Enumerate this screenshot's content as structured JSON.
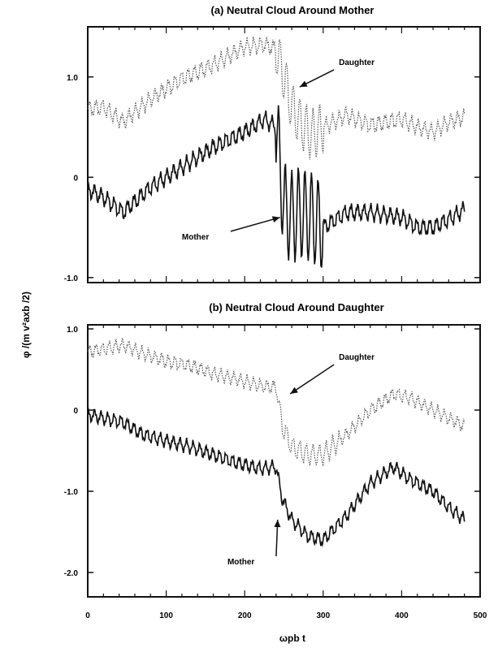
{
  "figure": {
    "ylabel": "φ /(m v²axb /2)",
    "xlabel": "ωpb t"
  },
  "chart_data": [
    {
      "type": "line",
      "title": "(a) Neutral Cloud Around Mother",
      "xlim": [
        0,
        500
      ],
      "ylim": [
        -1.05,
        1.5
      ],
      "yticks": [
        {
          "value": 1.0,
          "label": "1.0"
        },
        {
          "value": 0,
          "label": "0"
        },
        {
          "value": -1.0,
          "label": "-1.0"
        }
      ],
      "xticks": [
        0,
        100,
        200,
        300,
        400,
        500
      ],
      "grid": false,
      "series": [
        {
          "name": "Daughter",
          "style": "dotted",
          "color": "#555555",
          "x": [
            0,
            20,
            45,
            80,
            120,
            160,
            200,
            225,
            240,
            250,
            260,
            270,
            285,
            300,
            330,
            360,
            400,
            420,
            440,
            460,
            480
          ],
          "y": [
            0.68,
            0.7,
            0.55,
            0.78,
            0.98,
            1.12,
            1.3,
            1.32,
            1.28,
            1.0,
            0.7,
            0.55,
            0.42,
            0.5,
            0.62,
            0.52,
            0.58,
            0.5,
            0.45,
            0.55,
            0.6
          ]
        },
        {
          "name": "Mother",
          "style": "solid",
          "color": "#111111",
          "x": [
            0,
            20,
            45,
            80,
            120,
            160,
            200,
            225,
            240,
            250,
            260,
            270,
            285,
            300,
            330,
            360,
            400,
            420,
            440,
            460,
            480
          ],
          "y": [
            -0.12,
            -0.2,
            -0.35,
            -0.1,
            0.1,
            0.3,
            0.45,
            0.58,
            0.5,
            -0.3,
            -0.4,
            -0.35,
            -0.4,
            -0.5,
            -0.35,
            -0.35,
            -0.4,
            -0.5,
            -0.5,
            -0.42,
            -0.32
          ]
        }
      ],
      "annotations": [
        {
          "text": "Daughter",
          "x": 320,
          "y": 1.12,
          "arrow_to": [
            270,
            0.9
          ]
        },
        {
          "text": "Mother",
          "x": 120,
          "y": -0.62,
          "arrow_to": [
            245,
            -0.4
          ]
        }
      ]
    },
    {
      "type": "line",
      "title": "(b) Neutral Cloud Around Daughter",
      "xlim": [
        0,
        500
      ],
      "ylim": [
        -2.3,
        1.05
      ],
      "yticks": [
        {
          "value": 1.0,
          "label": "1.0"
        },
        {
          "value": 0,
          "label": "0"
        },
        {
          "value": -1.0,
          "label": "-1.0"
        },
        {
          "value": -2.0,
          "label": "-2.0"
        }
      ],
      "xticks": [
        0,
        100,
        200,
        300,
        400,
        500
      ],
      "grid": false,
      "series": [
        {
          "name": "Daughter",
          "style": "dotted",
          "color": "#555555",
          "x": [
            0,
            20,
            45,
            70,
            100,
            130,
            160,
            190,
            220,
            240,
            248,
            260,
            280,
            300,
            330,
            360,
            390,
            410,
            440,
            460,
            480
          ],
          "y": [
            0.72,
            0.75,
            0.8,
            0.7,
            0.6,
            0.55,
            0.45,
            0.38,
            0.3,
            0.28,
            -0.2,
            -0.45,
            -0.55,
            -0.55,
            -0.3,
            0.0,
            0.2,
            0.15,
            0.0,
            -0.1,
            -0.2
          ]
        },
        {
          "name": "Mother",
          "style": "solid",
          "color": "#111111",
          "x": [
            0,
            20,
            45,
            70,
            100,
            130,
            160,
            190,
            220,
            240,
            248,
            260,
            280,
            300,
            330,
            360,
            390,
            410,
            440,
            460,
            480
          ],
          "y": [
            -0.05,
            -0.1,
            -0.15,
            -0.3,
            -0.38,
            -0.45,
            -0.55,
            -0.65,
            -0.72,
            -0.7,
            -1.1,
            -1.35,
            -1.55,
            -1.6,
            -1.3,
            -0.9,
            -0.7,
            -0.85,
            -1.0,
            -1.2,
            -1.35
          ]
        }
      ],
      "annotations": [
        {
          "text": "Daughter",
          "x": 320,
          "y": 0.62,
          "arrow_to": [
            258,
            0.2
          ]
        },
        {
          "text": "Mother",
          "x": 178,
          "y": -1.9,
          "arrow_to": [
            242,
            -1.35
          ]
        }
      ]
    }
  ]
}
